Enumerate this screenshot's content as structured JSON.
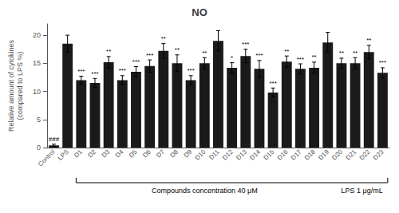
{
  "chart_data": {
    "type": "bar",
    "title": "NO",
    "ylabel": "Relative amount of cytokines\n(compared to LPS %)",
    "categories": [
      "Control",
      "LPS",
      "D1",
      "D2",
      "D3",
      "D4",
      "D5",
      "D6",
      "D7",
      "D8",
      "D9",
      "D10",
      "D11",
      "D12",
      "D13",
      "D14",
      "D15",
      "D16",
      "D17",
      "D18",
      "D19",
      "D20",
      "D21",
      "D22",
      "D23"
    ],
    "values": [
      0.4,
      18.5,
      12.0,
      11.5,
      15.2,
      12.0,
      13.5,
      14.5,
      17.2,
      15.0,
      12.0,
      15.0,
      19.0,
      14.2,
      16.3,
      14.0,
      9.8,
      15.3,
      14.0,
      14.2,
      18.7,
      15.0,
      15.0,
      17.0,
      13.3
    ],
    "errors": [
      0.2,
      1.5,
      0.7,
      0.8,
      1.0,
      0.8,
      0.9,
      1.1,
      1.3,
      1.5,
      0.8,
      1.0,
      1.8,
      0.9,
      1.2,
      1.5,
      0.8,
      1.0,
      0.9,
      1.0,
      1.8,
      0.9,
      1.0,
      1.2,
      0.9
    ],
    "significance": [
      "###",
      null,
      "***",
      "***",
      "**",
      "***",
      "***",
      "***",
      "**",
      "**",
      "***",
      "**",
      null,
      "*",
      "***",
      "***",
      "***",
      "**",
      "***",
      "**",
      null,
      "**",
      "**",
      "**",
      "***"
    ],
    "annotations": [
      {
        "text": "Compounds concentration 40 μM",
        "from": "D1",
        "to": "D19"
      },
      {
        "text": "LPS 1 μg/mL",
        "from": "D20",
        "to": "D23"
      }
    ],
    "color": "#1a1a1a",
    "ylim": [
      0,
      22
    ],
    "yticks": [
      0,
      5,
      10,
      15,
      20
    ],
    "grid": false
  }
}
